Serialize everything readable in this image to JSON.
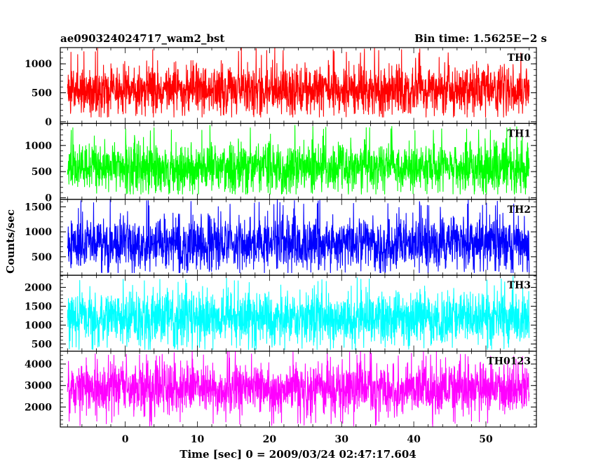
{
  "chart_data": {
    "type": "line",
    "title_left": "ae090324024717_wam2_bst",
    "title_right": "Bin time: 1.5625E−2 s",
    "xlabel": "Time [sec] 0 = 2009/03/24 02:47:17.604",
    "ylabel": "Counts/sec",
    "xlim": [
      -9,
      57
    ],
    "x_data_range": [
      -8,
      56
    ],
    "bin_time_s": 0.015625,
    "x_ticks": [
      0,
      10,
      20,
      30,
      40,
      50
    ],
    "x_tick_labels": [
      "0",
      "10",
      "20",
      "30",
      "40",
      "50"
    ],
    "panels": [
      {
        "name": "TH0",
        "color": "#ff0000",
        "ylim": [
          -30,
          1280
        ],
        "y_ticks": [
          0,
          500,
          1000
        ],
        "y_tick_labels": [
          "0",
          "500",
          "1000"
        ],
        "mean": 560,
        "min": 80,
        "max": 1280
      },
      {
        "name": "TH1",
        "color": "#00ff00",
        "ylim": [
          -30,
          1420
        ],
        "y_ticks": [
          0,
          500,
          1000
        ],
        "y_tick_labels": [
          "0",
          "500",
          "1000"
        ],
        "mean": 580,
        "min": 70,
        "max": 1400
      },
      {
        "name": "TH2",
        "color": "#0000ff",
        "ylim": [
          130,
          1650
        ],
        "y_ticks": [
          500,
          1000,
          1500
        ],
        "y_tick_labels": [
          "500",
          "1000",
          "1500"
        ],
        "mean": 760,
        "min": 180,
        "max": 1650
      },
      {
        "name": "TH3",
        "color": "#00ffff",
        "ylim": [
          310,
          2320
        ],
        "y_ticks": [
          500,
          1000,
          1500,
          2000
        ],
        "y_tick_labels": [
          "500",
          "1000",
          "1500",
          "2000"
        ],
        "mean": 1180,
        "min": 350,
        "max": 2300
      },
      {
        "name": "TH0123",
        "color": "#ff00ff",
        "ylim": [
          1070,
          4600
        ],
        "y_ticks": [
          2000,
          3000,
          4000
        ],
        "y_tick_labels": [
          "2000",
          "3000",
          "4000"
        ],
        "mean": 2860,
        "min": 1100,
        "max": 4600
      }
    ]
  }
}
